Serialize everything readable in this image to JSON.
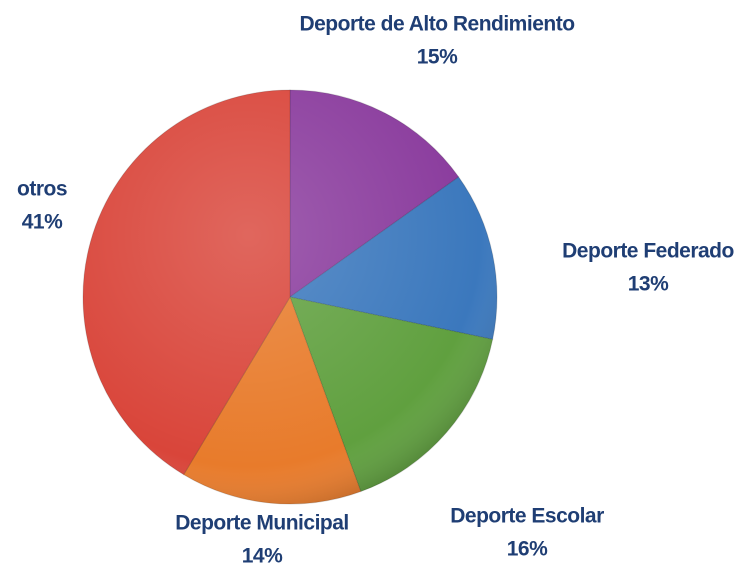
{
  "chart_data": {
    "type": "pie",
    "categories": [
      "Deporte de Alto Rendimiento",
      "Deporte Federado",
      "Deporte Escolar",
      "Deporte Municipal",
      "otros"
    ],
    "values": [
      15,
      13,
      16,
      14,
      41
    ],
    "value_labels": [
      "15%",
      "13%",
      "16%",
      "14%",
      "41%"
    ],
    "colors": [
      "#8a3b9d",
      "#3b78bd",
      "#60a03f",
      "#e87b2b",
      "#d9453a"
    ]
  }
}
